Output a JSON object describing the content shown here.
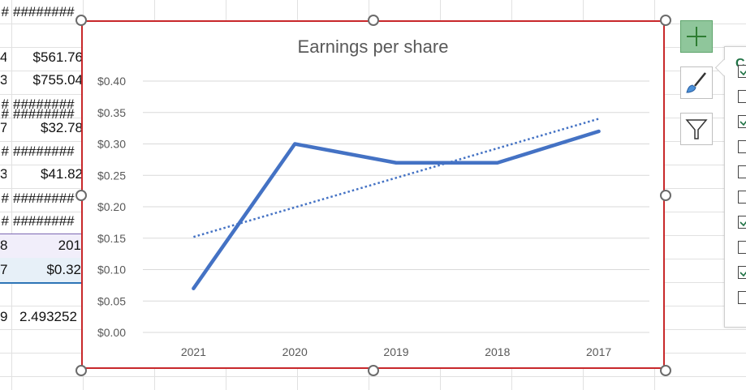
{
  "spreadsheet": {
    "columnA": [
      "#",
      "4",
      "3",
      "#",
      "#",
      "7",
      "#",
      "3",
      "#",
      "#",
      "8",
      "7",
      "",
      "9"
    ],
    "columnB": [
      "########",
      "$561.76",
      "$755.04",
      "########",
      "########",
      "$32.78",
      "########",
      "$41.82",
      "########",
      "########",
      "201",
      "$0.32",
      "",
      "2.493252"
    ]
  },
  "chart": {
    "title": "Earnings per share",
    "yaxis_ticks": [
      "$0.40",
      "$0.35",
      "$0.30",
      "$0.25",
      "$0.20",
      "$0.15",
      "$0.10",
      "$0.05",
      "$0.00"
    ],
    "xaxis_ticks": [
      "2021",
      "2020",
      "2019",
      "2018",
      "2017"
    ]
  },
  "chart_data": {
    "type": "line",
    "title": "Earnings per share",
    "categories": [
      "2021",
      "2020",
      "2019",
      "2018",
      "2017"
    ],
    "series": [
      {
        "values": [
          0.07,
          0.3,
          0.27,
          0.27,
          0.32
        ],
        "style": "solid",
        "color": "#4472c4"
      },
      {
        "values": [
          0.152,
          0.199,
          0.246,
          0.293,
          0.34
        ],
        "style": "dotted",
        "color": "#4472c4",
        "kind": "linear trendline"
      }
    ],
    "ylim": [
      0,
      0.4
    ],
    "grid": true,
    "legend": "none"
  },
  "side_buttons": [
    {
      "icon": "plus-icon",
      "label": "Chart Elements"
    },
    {
      "icon": "brush-icon",
      "label": "Chart Styles"
    },
    {
      "icon": "filter-icon",
      "label": "Chart Filters"
    }
  ],
  "elements_pane": {
    "title_visible": "C",
    "checkboxes": [
      true,
      false,
      true,
      false,
      false,
      false,
      true,
      false,
      true,
      false
    ]
  },
  "colors": {
    "series": "#4472c4",
    "selection_border": "#c8282b",
    "pane_title": "#217346",
    "active_button": "#8fc69b"
  }
}
